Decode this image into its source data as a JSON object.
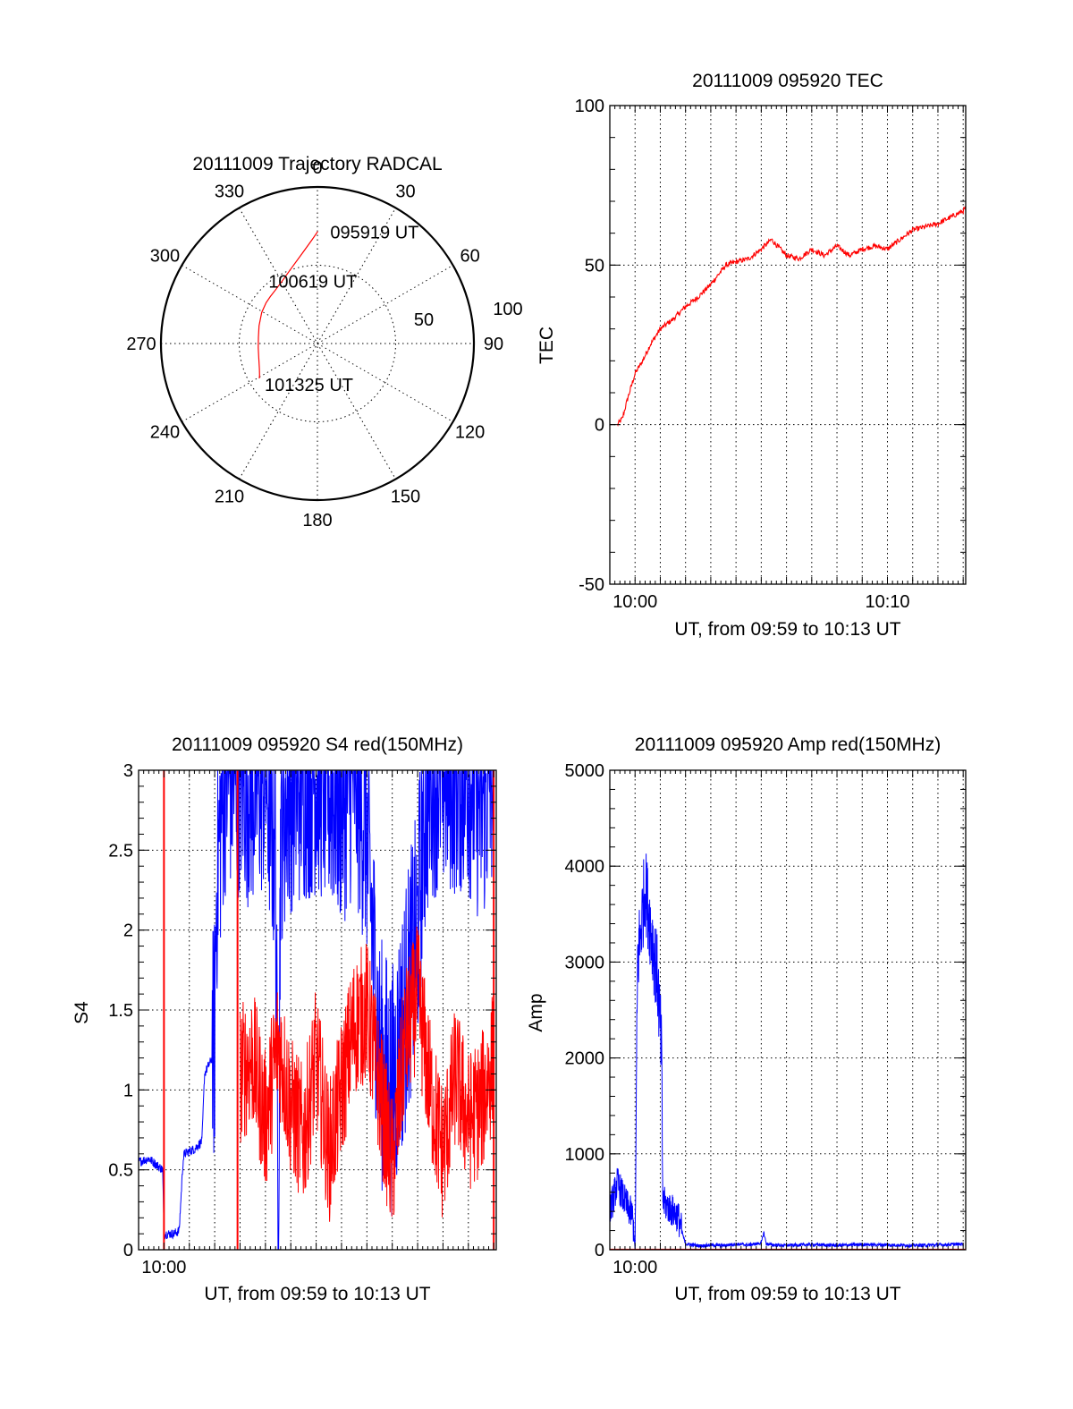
{
  "colors": {
    "red": "#ff0000",
    "blue": "#0000ff",
    "axis": "#000000",
    "background": "#ffffff"
  },
  "chart_data": [
    {
      "id": "polar",
      "type": "polar-trajectory",
      "title": "20111009 Trajectory RADCAL",
      "azimuth_labels": [
        "0",
        "30",
        "60",
        "90",
        "120",
        "150",
        "180",
        "210",
        "240",
        "270",
        "300",
        "330"
      ],
      "azimuth_values": [
        0,
        30,
        60,
        90,
        120,
        150,
        180,
        210,
        240,
        270,
        300,
        330
      ],
      "radial_labels": [
        "50",
        "100"
      ],
      "radial_values": [
        50,
        100
      ],
      "radial_max": 100,
      "grid": true,
      "series": [
        {
          "color": "#ff0000",
          "points": [
            [
              0.2,
              71.6
            ],
            [
              -3.0,
              66.3
            ],
            [
              -9.8,
              58.2
            ],
            [
              -19.4,
              50.7
            ],
            [
              -29.1,
              46.0
            ],
            [
              -37.8,
              43.5
            ],
            [
              -45.1,
              42.5
            ],
            [
              -51.5,
              41.9
            ],
            [
              -60.8,
              40.8
            ],
            [
              -73.1,
              39.0
            ],
            [
              -84.0,
              37.9
            ],
            [
              -94.1,
              37.9
            ],
            [
              -103.8,
              38.6
            ],
            [
              -113.4,
              40.4
            ],
            [
              -118.4,
              42.0
            ],
            [
              -121.0,
              43.3
            ]
          ]
        }
      ],
      "annotations": [
        {
          "text": "095919 UT",
          "az": 0.2,
          "r": 71.6
        },
        {
          "text": "100619 UT",
          "az": -45.1,
          "r": 42.5
        },
        {
          "text": "101325 UT",
          "az": -121.0,
          "r": 43.3
        }
      ]
    },
    {
      "id": "tec",
      "type": "line",
      "title": "20111009 095920 TEC",
      "xlabel": "UT, from 09:59 to 10:13 UT",
      "ylabel": "TEC",
      "xlim_minutes_after_0959": [
        0,
        14.1
      ],
      "ylim": [
        -50,
        100
      ],
      "yticks": [
        -50,
        0,
        50,
        100
      ],
      "xticks": [
        {
          "label": "10:00",
          "at_minutes": 1
        },
        {
          "label": "10:10",
          "at_minutes": 11
        }
      ],
      "grid": true,
      "series": [
        {
          "color": "#ff0000",
          "x_minutes": [
            0.3,
            0.5,
            0.7,
            1.0,
            1.3,
            1.6,
            2.0,
            2.5,
            3.0,
            3.5,
            4.0,
            4.3,
            4.6,
            5.0,
            5.5,
            6.0,
            6.4,
            7.0,
            7.5,
            8.0,
            8.5,
            9.0,
            9.5,
            10.0,
            10.5,
            11.0,
            11.5,
            12.0,
            12.5,
            13.0,
            13.5,
            14.0,
            14.1
          ],
          "y": [
            0,
            2,
            8,
            16,
            20,
            25,
            30,
            33,
            37,
            40,
            44,
            47,
            50,
            51,
            52,
            55,
            58,
            53,
            52,
            55,
            53,
            56,
            53,
            55,
            56,
            55,
            58,
            61,
            62,
            63,
            65,
            67,
            68
          ]
        }
      ]
    },
    {
      "id": "s4",
      "type": "line",
      "title": "20111009 095920 S4 red(150MHz)",
      "xlabel": "UT, from 09:59 to 10:13 UT",
      "ylabel": "S4",
      "xlim_minutes_after_0959": [
        0,
        14.1
      ],
      "ylim": [
        0,
        3
      ],
      "yticks": [
        0,
        0.5,
        1,
        1.5,
        2,
        2.5,
        3
      ],
      "ytick_labels": [
        "0",
        "0.5",
        "1",
        "1.5",
        "2",
        "2.5",
        "3"
      ],
      "xticks": [
        {
          "label": "10:00",
          "at_minutes": 1
        }
      ],
      "grid": true,
      "series": [
        {
          "color": "#0000ff",
          "x_minutes": [
            0.0,
            0.4,
            0.8,
            0.95,
            1.0,
            1.4,
            1.6,
            1.75,
            1.8,
            2.2,
            2.5,
            2.6,
            2.9,
            3.0,
            3.05,
            3.1,
            3.2,
            3.3,
            3.4,
            3.6,
            4.0,
            4.5,
            5.0,
            5.4,
            5.5,
            5.6,
            6.0,
            7.0,
            8.0,
            8.5,
            9.0,
            9.5,
            10.0,
            10.5,
            11.0,
            11.2,
            11.5,
            12.0,
            12.5,
            13.0,
            13.5,
            14.0
          ],
          "y": [
            0.55,
            0.57,
            0.52,
            0.5,
            0.1,
            0.1,
            0.12,
            0.55,
            0.6,
            0.63,
            0.68,
            1.1,
            1.2,
            1.35,
            2.1,
            2.4,
            2.6,
            2.8,
            3.0,
            3.0,
            3.0,
            2.9,
            3.0,
            2.5,
            0.0,
            2.7,
            2.9,
            3.0,
            2.8,
            3.0,
            2.6,
            1.2,
            1.0,
            1.5,
            2.0,
            2.6,
            3.0,
            3.0,
            3.0,
            3.0,
            2.8,
            3.0
          ]
        },
        {
          "color": "#ff0000",
          "x_minutes": [
            4.0,
            4.5,
            5.0,
            5.5,
            6.0,
            6.5,
            7.0,
            7.5,
            8.0,
            8.5,
            9.0,
            9.5,
            10.0,
            10.5,
            11.0,
            11.5,
            12.0,
            12.5,
            13.0,
            13.5,
            14.0
          ],
          "y": [
            1.1,
            1.2,
            0.8,
            1.3,
            0.9,
            0.7,
            1.2,
            0.6,
            1.0,
            1.4,
            1.5,
            1.0,
            0.5,
            1.3,
            1.6,
            1.0,
            0.6,
            1.1,
            0.8,
            0.9,
            1.2
          ]
        }
      ],
      "spikes": [
        {
          "color": "#ff0000",
          "at_minutes": 1.0,
          "from": 0,
          "to": 3
        },
        {
          "color": "#ff0000",
          "at_minutes": 3.9,
          "from": 0,
          "to": 3
        },
        {
          "color": "#ff0000",
          "at_minutes": 14.0,
          "from": 0,
          "to": 3
        }
      ]
    },
    {
      "id": "amp",
      "type": "line",
      "title": "20111009 095920 Amp red(150MHz)",
      "xlabel": "UT, from 09:59 to 10:13 UT",
      "ylabel": "Amp",
      "xlim_minutes_after_0959": [
        0,
        14.1
      ],
      "ylim": [
        0,
        5000
      ],
      "yticks": [
        0,
        1000,
        2000,
        3000,
        4000,
        5000
      ],
      "xticks": [
        {
          "label": "10:00",
          "at_minutes": 1
        }
      ],
      "grid": true,
      "series": [
        {
          "color": "#0000ff",
          "x_minutes": [
            0.0,
            0.3,
            0.6,
            0.9,
            1.0,
            1.1,
            1.4,
            1.6,
            1.9,
            2.05,
            2.1,
            2.3,
            2.5,
            2.7,
            2.9,
            3.0,
            3.3,
            3.6,
            4.0,
            4.5,
            5.0,
            5.5,
            6.0,
            6.1,
            6.2,
            6.5,
            7.0,
            8.0,
            9.0,
            10.0,
            11.0,
            12.0,
            13.0,
            14.0
          ],
          "y": [
            400,
            700,
            500,
            350,
            0,
            3000,
            3800,
            3400,
            2800,
            2000,
            500,
            450,
            400,
            350,
            150,
            60,
            50,
            40,
            50,
            45,
            60,
            50,
            70,
            180,
            60,
            50,
            45,
            55,
            45,
            55,
            50,
            45,
            50,
            60
          ]
        },
        {
          "color": "#ff0000",
          "x_minutes": [
            0.0,
            14.1
          ],
          "y": [
            3,
            3
          ]
        }
      ]
    }
  ]
}
